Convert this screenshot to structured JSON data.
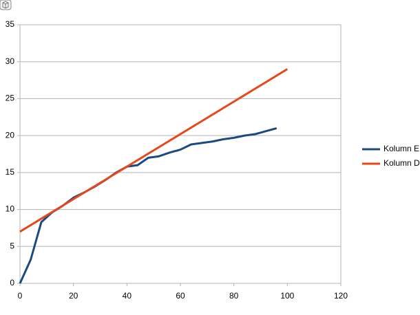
{
  "chart_data": {
    "type": "line",
    "xlim": [
      0,
      120
    ],
    "xticks": [
      0,
      20,
      40,
      60,
      80,
      100,
      120
    ],
    "ylim": [
      0,
      35
    ],
    "yticks": [
      0,
      5,
      10,
      15,
      20,
      25,
      30,
      35
    ],
    "grid": true,
    "legend": "right",
    "series": [
      {
        "name": "Kolumn E",
        "color": "#1a4a82",
        "x": [
          0,
          4,
          8,
          12,
          16,
          20,
          24,
          28,
          32,
          36,
          40,
          44,
          48,
          52,
          56,
          60,
          64,
          68,
          72,
          76,
          80,
          84,
          88,
          92,
          96
        ],
        "values": [
          0,
          3.2,
          8.3,
          9.6,
          10.5,
          11.6,
          12.3,
          13.1,
          14,
          15,
          15.8,
          16,
          17,
          17.2,
          17.7,
          18.1,
          18.8,
          19,
          19.2,
          19.5,
          19.7,
          20,
          20.2,
          20.6,
          21
        ]
      },
      {
        "name": "Kolumn D",
        "color": "#e8471c",
        "x": [
          0,
          100
        ],
        "values": [
          7,
          29
        ]
      }
    ]
  }
}
